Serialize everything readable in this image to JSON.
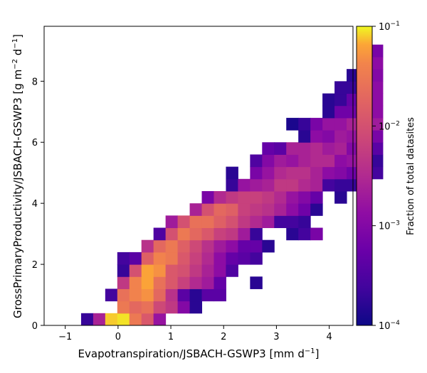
{
  "chart_data": {
    "type": "heatmap",
    "title": "",
    "xlabel": "Evapotranspiration/JSBACH-GSWP3",
    "xlabel_unit_base": "[mm d",
    "xlabel_unit_exp": "−1",
    "xlabel_unit_end": "]",
    "ylabel": "GrossPrimaryProductivity/JSBACH-GSWP3",
    "ylabel_unit_base": "[g m",
    "ylabel_unit_exp1": "−2",
    "ylabel_unit_mid": " d",
    "ylabel_unit_exp2": "−1",
    "ylabel_unit_end": "]",
    "xlim": [
      -1.4,
      4.45
    ],
    "ylim": [
      0,
      9.8
    ],
    "xticks": [
      -1,
      0,
      1,
      2,
      3,
      4
    ],
    "xtick_labels": [
      "−1",
      "0",
      "1",
      "2",
      "3",
      "4"
    ],
    "yticks": [
      0,
      2,
      4,
      6,
      8
    ],
    "ytick_labels": [
      "0",
      "2",
      "4",
      "6",
      "8"
    ],
    "grid": false,
    "colormap": "plasma",
    "color_scale": "log",
    "colorbar": {
      "label": "Fraction of total datasites",
      "range": [
        0.0001,
        0.1
      ],
      "ticks": [
        0.0001,
        0.001,
        0.01,
        0.1
      ],
      "tick_base": [
        "10",
        "10",
        "10",
        "10"
      ],
      "tick_exp": [
        "−4",
        "−3",
        "−2",
        "−1"
      ]
    },
    "bins": {
      "x_start": -0.7,
      "x_width": 0.2286,
      "y_start": 0.0,
      "y_width": 0.4
    },
    "cells": [
      [
        0,
        0,
        -3.7
      ],
      [
        1,
        0,
        -2.6
      ],
      [
        2,
        0,
        -1.1
      ],
      [
        3,
        0,
        -1.05
      ],
      [
        4,
        0,
        -1.5
      ],
      [
        5,
        0,
        -1.9
      ],
      [
        6,
        0,
        -2.8
      ],
      [
        3,
        1,
        -1.5
      ],
      [
        4,
        1,
        -1.7
      ],
      [
        5,
        1,
        -1.6
      ],
      [
        6,
        1,
        -2.1
      ],
      [
        7,
        1,
        -2.3
      ],
      [
        8,
        1,
        -3.0
      ],
      [
        9,
        1,
        -3.8
      ],
      [
        2,
        2,
        -3.6
      ],
      [
        3,
        2,
        -1.6
      ],
      [
        4,
        2,
        -1.4
      ],
      [
        5,
        2,
        -1.3
      ],
      [
        6,
        2,
        -1.7
      ],
      [
        7,
        2,
        -2.4
      ],
      [
        8,
        2,
        -3.4
      ],
      [
        9,
        2,
        -3.8
      ],
      [
        10,
        2,
        -3.4
      ],
      [
        11,
        2,
        -3.4
      ],
      [
        3,
        3,
        -2.3
      ],
      [
        4,
        3,
        -1.4
      ],
      [
        5,
        3,
        -1.2
      ],
      [
        6,
        3,
        -1.6
      ],
      [
        7,
        3,
        -1.9
      ],
      [
        8,
        3,
        -2.2
      ],
      [
        9,
        3,
        -2.5
      ],
      [
        10,
        3,
        -2.7
      ],
      [
        11,
        3,
        -3.3
      ],
      [
        14,
        3,
        -3.8
      ],
      [
        3,
        4,
        -3.7
      ],
      [
        4,
        4,
        -2.0
      ],
      [
        5,
        4,
        -1.2
      ],
      [
        6,
        4,
        -1.3
      ],
      [
        7,
        4,
        -1.9
      ],
      [
        8,
        4,
        -2.0
      ],
      [
        9,
        4,
        -2.3
      ],
      [
        10,
        4,
        -2.6
      ],
      [
        11,
        4,
        -2.9
      ],
      [
        12,
        4,
        -3.5
      ],
      [
        3,
        5,
        -3.6
      ],
      [
        4,
        5,
        -3.4
      ],
      [
        5,
        5,
        -1.8
      ],
      [
        6,
        5,
        -1.4
      ],
      [
        7,
        5,
        -1.5
      ],
      [
        8,
        5,
        -1.9
      ],
      [
        9,
        5,
        -2.2
      ],
      [
        10,
        5,
        -2.5
      ],
      [
        11,
        5,
        -2.9
      ],
      [
        12,
        5,
        -3.3
      ],
      [
        13,
        5,
        -3.4
      ],
      [
        14,
        5,
        -3.6
      ],
      [
        5,
        6,
        -2.4
      ],
      [
        6,
        6,
        -1.7
      ],
      [
        7,
        6,
        -1.5
      ],
      [
        8,
        6,
        -1.8
      ],
      [
        9,
        6,
        -2.1
      ],
      [
        10,
        6,
        -2.4
      ],
      [
        11,
        6,
        -2.7
      ],
      [
        12,
        6,
        -2.9
      ],
      [
        13,
        6,
        -3.3
      ],
      [
        14,
        6,
        -3.3
      ],
      [
        15,
        6,
        -3.8
      ],
      [
        6,
        7,
        -3.5
      ],
      [
        7,
        7,
        -2.0
      ],
      [
        8,
        7,
        -1.5
      ],
      [
        9,
        7,
        -1.7
      ],
      [
        10,
        7,
        -1.9
      ],
      [
        11,
        7,
        -2.2
      ],
      [
        12,
        7,
        -2.3
      ],
      [
        13,
        7,
        -2.7
      ],
      [
        14,
        7,
        -3.7
      ],
      [
        17,
        7,
        -3.8
      ],
      [
        18,
        7,
        -3.6
      ],
      [
        19,
        7,
        -3.1
      ],
      [
        7,
        8,
        -2.7
      ],
      [
        8,
        8,
        -2.0
      ],
      [
        9,
        8,
        -1.6
      ],
      [
        10,
        8,
        -1.6
      ],
      [
        11,
        8,
        -1.8
      ],
      [
        12,
        8,
        -2.0
      ],
      [
        13,
        8,
        -2.3
      ],
      [
        14,
        8,
        -2.5
      ],
      [
        15,
        8,
        -2.7
      ],
      [
        16,
        8,
        -3.6
      ],
      [
        17,
        8,
        -3.6
      ],
      [
        18,
        8,
        -3.7
      ],
      [
        9,
        9,
        -2.6
      ],
      [
        10,
        9,
        -2.0
      ],
      [
        11,
        9,
        -1.7
      ],
      [
        12,
        9,
        -1.8
      ],
      [
        13,
        9,
        -2.2
      ],
      [
        14,
        9,
        -2.3
      ],
      [
        15,
        9,
        -2.4
      ],
      [
        16,
        9,
        -2.6
      ],
      [
        17,
        9,
        -2.9
      ],
      [
        18,
        9,
        -3.2
      ],
      [
        19,
        9,
        -3.8
      ],
      [
        10,
        10,
        -3.1
      ],
      [
        11,
        10,
        -2.5
      ],
      [
        12,
        10,
        -2.3
      ],
      [
        13,
        10,
        -2.2
      ],
      [
        14,
        10,
        -2.2
      ],
      [
        15,
        10,
        -2.3
      ],
      [
        16,
        10,
        -2.5
      ],
      [
        17,
        10,
        -2.8
      ],
      [
        18,
        10,
        -3.0
      ],
      [
        19,
        10,
        -3.3
      ],
      [
        21,
        10,
        -3.8
      ],
      [
        12,
        11,
        -3.7
      ],
      [
        13,
        11,
        -2.8
      ],
      [
        14,
        11,
        -2.7
      ],
      [
        15,
        11,
        -2.6
      ],
      [
        16,
        11,
        -2.3
      ],
      [
        17,
        11,
        -2.3
      ],
      [
        18,
        11,
        -2.5
      ],
      [
        19,
        11,
        -2.6
      ],
      [
        20,
        11,
        -3.6
      ],
      [
        21,
        11,
        -3.7
      ],
      [
        22,
        11,
        -3.7
      ],
      [
        12,
        12,
        -3.8
      ],
      [
        14,
        12,
        -3.1
      ],
      [
        15,
        12,
        -2.8
      ],
      [
        16,
        12,
        -2.5
      ],
      [
        17,
        12,
        -2.4
      ],
      [
        18,
        12,
        -2.4
      ],
      [
        19,
        12,
        -2.6
      ],
      [
        20,
        12,
        -2.9
      ],
      [
        21,
        12,
        -3.0
      ],
      [
        22,
        12,
        -3.2
      ],
      [
        24,
        12,
        -3.6
      ],
      [
        14,
        13,
        -3.5
      ],
      [
        15,
        13,
        -3.0
      ],
      [
        16,
        13,
        -2.7
      ],
      [
        17,
        13,
        -2.8
      ],
      [
        18,
        13,
        -2.6
      ],
      [
        19,
        13,
        -2.5
      ],
      [
        20,
        13,
        -2.5
      ],
      [
        21,
        13,
        -2.9
      ],
      [
        22,
        13,
        -2.8
      ],
      [
        23,
        13,
        -3.3
      ],
      [
        24,
        13,
        -3.7
      ],
      [
        15,
        14,
        -3.3
      ],
      [
        16,
        14,
        -3.4
      ],
      [
        17,
        14,
        -2.6
      ],
      [
        18,
        14,
        -2.6
      ],
      [
        19,
        14,
        -2.5
      ],
      [
        20,
        14,
        -2.7
      ],
      [
        21,
        14,
        -2.6
      ],
      [
        22,
        14,
        -3.0
      ],
      [
        23,
        14,
        -3.2
      ],
      [
        24,
        14,
        -3.4
      ],
      [
        18,
        15,
        -3.8
      ],
      [
        19,
        15,
        -2.9
      ],
      [
        20,
        15,
        -3.0
      ],
      [
        21,
        15,
        -2.7
      ],
      [
        22,
        15,
        -2.8
      ],
      [
        23,
        15,
        -2.9
      ],
      [
        24,
        15,
        -3.1
      ],
      [
        17,
        16,
        -3.9
      ],
      [
        18,
        16,
        -3.7
      ],
      [
        19,
        16,
        -3.1
      ],
      [
        20,
        16,
        -2.8
      ],
      [
        21,
        16,
        -2.8
      ],
      [
        22,
        16,
        -2.6
      ],
      [
        23,
        16,
        -2.9
      ],
      [
        24,
        16,
        -2.7
      ],
      [
        20,
        17,
        -3.8
      ],
      [
        21,
        17,
        -3.2
      ],
      [
        22,
        17,
        -3.2
      ],
      [
        23,
        17,
        -3.0
      ],
      [
        24,
        17,
        -2.9
      ],
      [
        20,
        18,
        -3.8
      ],
      [
        21,
        18,
        -3.7
      ],
      [
        22,
        18,
        -3.3
      ],
      [
        23,
        18,
        -2.8
      ],
      [
        24,
        18,
        -2.9
      ],
      [
        21,
        19,
        -3.7
      ],
      [
        22,
        19,
        -3.7
      ],
      [
        23,
        19,
        -3.0
      ],
      [
        24,
        19,
        -2.9
      ],
      [
        22,
        20,
        -3.8
      ],
      [
        23,
        20,
        -3.1
      ],
      [
        24,
        20,
        -3.0
      ],
      [
        23,
        21,
        -3.1
      ],
      [
        24,
        21,
        -2.9
      ],
      [
        23,
        22,
        -3.2
      ],
      [
        24,
        22,
        -3.1
      ]
    ]
  }
}
